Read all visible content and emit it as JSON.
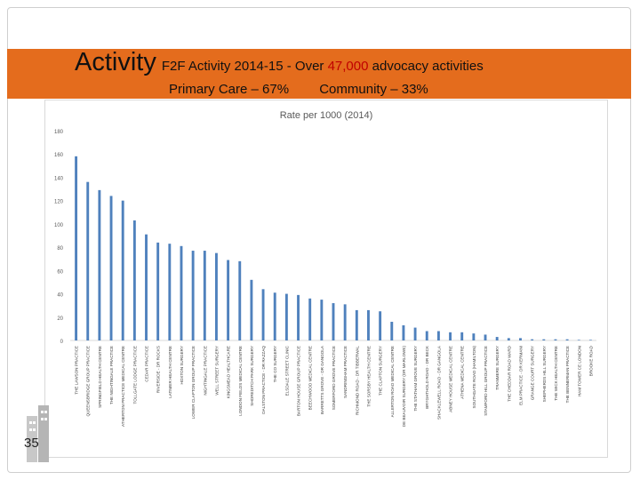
{
  "slide": {
    "title_big": "Activity",
    "title_small_pre": "F2F Activity 2014-15  - Over ",
    "title_highlight": "47,000",
    "title_small_post": " advocacy activities",
    "subtitle_primary": "Primary Care – 67%",
    "subtitle_community": "Community – 33%",
    "page_number": "35"
  },
  "colors": {
    "banner": "#e46c1d",
    "highlight": "#c00000",
    "bar": "#4f81bd"
  },
  "chart_data": {
    "type": "bar",
    "title": "Rate per 1000 (2014)",
    "xlabel": "",
    "ylabel": "",
    "ylim": [
      0,
      180
    ],
    "yticks": [
      0,
      20,
      40,
      60,
      80,
      100,
      120,
      140,
      160,
      180
    ],
    "grid": false,
    "categories": [
      "THE LAWSON PRACTICE",
      "QUEENSBRIDGE GROUP PRACTICE",
      "SPRINGFIELD HEALTH CENTRE",
      "THE NIGHTINGALE PRACTICE",
      "ATHERTON PRACTICE MEDICAL CENTRE",
      "TOLLGATE LODGE PRACTICE",
      "CEDAR PRACTICE",
      "RIVERSIDE - DR ROCKS",
      "LATIMER HEALTH CENTRE",
      "HOXTON SURGERY",
      "LOWER CLAPTON GROUP PRACTICE",
      "NIGHTINGALE PRACTICE",
      "WELL STREET SURGERY",
      "KINGSMEAD HEALTHCARE",
      "LONDON FIELDS MEDICAL CENTRE",
      "SHOREDITCH PARK SURGERY",
      "DALSTON PRACTICE - DR RAZZAQ",
      "THE CO SURGERY",
      "ELSDALE STREET CLINIC",
      "BARTON HOUSE GROUP PRACTICE",
      "BEECHWOOD MEDICAL CENTRE",
      "BARRETTS GROVE - DR GANGOLA",
      "SOMERFORD GROVE PRACTICE",
      "SANDRINGHAM PRACTICE",
      "RICHMOND ROAD - DR TIBBERWAL",
      "THE SORSBY HEALTH CENTRE",
      "THE CLAPTON SURGERY",
      "ALLERTON ROAD MEDICAL CENTRE",
      "DE BEAUVOIR SURGERY (DR MARLOWE)",
      "THE STATHAM GROVE SURGERY",
      "BRYGHTHOLD ROAD - DR BECK",
      "SHACKLEWELL ROAD - DR GANGOLA",
      "ABNEY HOUSE MEDICAL CENTRE",
      "ATHENA MEDICAL CENTRE",
      "SOUTHGATE ROAD (HAMILTON)",
      "STAMFORD HILL GROUP PRACTICE",
      "TRANMERE SURGERY",
      "THE CHEDDAR ROAD WARD",
      "ELM PRACTICE - DR KERMANI",
      "GRANGE COURT SURGERY",
      "SHEPHERDS HILL SURGERY",
      "THE WICK HEALTH CENTRE",
      "THE BENNERMAN PRACTICE",
      "HAM TOWER CE LONDON",
      "BROOKE ROAD"
    ],
    "values": [
      158,
      136,
      129,
      124,
      120,
      103,
      91,
      84,
      83,
      81,
      77,
      77,
      75,
      69,
      68,
      52,
      44,
      41,
      40,
      39,
      36,
      35,
      32,
      31,
      26,
      26,
      25,
      16,
      13,
      11,
      8,
      8,
      7,
      7,
      6,
      5,
      3,
      2,
      2,
      1,
      1,
      1,
      1,
      0.5,
      0.5
    ]
  }
}
